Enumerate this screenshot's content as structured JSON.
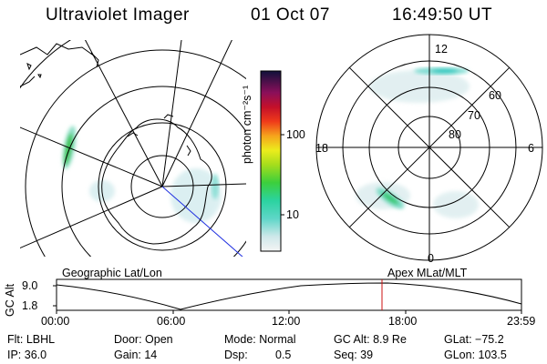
{
  "header": {
    "instrument": "Ultraviolet Imager",
    "date": "01 Oct 07",
    "time": "16:49:50 UT"
  },
  "colorbar": {
    "unit_label": "photon cm⁻²s⁻¹",
    "ticks": [
      "100",
      "10"
    ]
  },
  "polar_plot": {
    "mlt_labels": [
      "12",
      "18",
      "6",
      "0"
    ],
    "lat_labels": [
      "60",
      "70",
      "80"
    ]
  },
  "timeline": {
    "left_title": "Geographic Lat/Lon",
    "right_title": "Apex MLat/MLT",
    "y_label": "GC Alt",
    "y_ticks": [
      "9.0",
      "1.8"
    ],
    "x_ticks": [
      "00:00",
      "06:00",
      "12:00",
      "18:00",
      "23:59"
    ],
    "current_marker_fraction": 0.7
  },
  "status": {
    "filter_label": "Flt: LBHL",
    "ip_label": "IP: 36.0",
    "door_label": "Door: Open",
    "gain_label": "Gain: 14",
    "mode_label": "Mode: Normal",
    "dsp_label": "Dsp:",
    "dsp_value": "0.5",
    "gc_alt_label": "GC Alt: 8.9 Re",
    "seq_label": "Seq: 39",
    "glat_label": "GLat: −75.2",
    "glon_label": "GLon: 103.5"
  }
}
